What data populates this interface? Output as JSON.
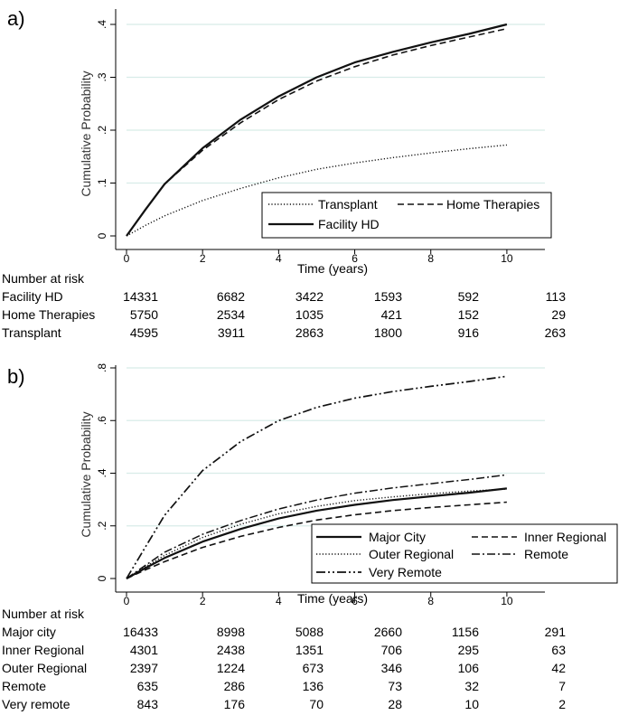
{
  "panels": [
    {
      "label": "a)"
    },
    {
      "label": "b)"
    }
  ],
  "chart_data": [
    {
      "type": "line",
      "title": "",
      "xlabel": "Time (years)",
      "ylabel": "Cumulative Probability",
      "xlim": [
        0,
        11
      ],
      "ylim": [
        0,
        0.4
      ],
      "xticks": [
        0,
        2,
        4,
        6,
        8,
        10
      ],
      "yticks": [
        0,
        0.1,
        0.2,
        0.3,
        0.4
      ],
      "ytick_labels": [
        "0",
        ".1",
        ".2",
        ".3",
        ".4"
      ],
      "xtick_labels": [
        "0",
        "2",
        "4",
        "6",
        "8",
        "10"
      ],
      "legend": [
        "Transplant",
        "Home Therapies",
        "Facility HD"
      ],
      "series": [
        {
          "name": "Transplant",
          "style": "dotted",
          "x": [
            0,
            0.5,
            1,
            2,
            3,
            4,
            5,
            6,
            7,
            8,
            9,
            10
          ],
          "y": [
            0,
            0.02,
            0.038,
            0.067,
            0.09,
            0.11,
            0.126,
            0.138,
            0.148,
            0.157,
            0.165,
            0.172
          ]
        },
        {
          "name": "Home Therapies",
          "style": "dashed",
          "x": [
            0,
            0.5,
            1,
            2,
            3,
            4,
            5,
            6,
            7,
            8,
            9,
            10
          ],
          "y": [
            0,
            0.05,
            0.098,
            0.162,
            0.214,
            0.258,
            0.293,
            0.32,
            0.342,
            0.36,
            0.376,
            0.392
          ]
        },
        {
          "name": "Facility HD",
          "style": "solid",
          "x": [
            0,
            0.5,
            1,
            2,
            3,
            4,
            5,
            6,
            7,
            8,
            9,
            10
          ],
          "y": [
            0,
            0.05,
            0.098,
            0.166,
            0.22,
            0.264,
            0.3,
            0.328,
            0.348,
            0.366,
            0.382,
            0.4
          ]
        }
      ],
      "risk_table": {
        "title": "Number at risk",
        "rows": [
          {
            "label": "Facility HD",
            "values": [
              "14331",
              "6682",
              "3422",
              "1593",
              "592",
              "113"
            ]
          },
          {
            "label": "Home Therapies",
            "values": [
              "5750",
              "2534",
              "1035",
              "421",
              "152",
              "29"
            ]
          },
          {
            "label": "Transplant",
            "values": [
              "4595",
              "3911",
              "2863",
              "1800",
              "916",
              "263"
            ]
          }
        ]
      }
    },
    {
      "type": "line",
      "title": "",
      "xlabel": "Time (years)",
      "ylabel": "Cumulative Probability",
      "xlim": [
        0,
        11
      ],
      "ylim": [
        0,
        0.8
      ],
      "xticks": [
        0,
        2,
        4,
        6,
        8,
        10
      ],
      "yticks": [
        0,
        0.2,
        0.4,
        0.6,
        0.8
      ],
      "ytick_labels": [
        "0",
        ".2",
        ".4",
        ".6",
        ".8"
      ],
      "xtick_labels": [
        "0",
        "2",
        "4",
        "6",
        "8",
        "10"
      ],
      "legend": [
        "Major City",
        "Inner Regional",
        "Outer Regional",
        "Remote",
        "Very Remote"
      ],
      "series": [
        {
          "name": "Major City",
          "style": "solid",
          "x": [
            0,
            0.5,
            1,
            2,
            3,
            4,
            5,
            6,
            7,
            8,
            9,
            10
          ],
          "y": [
            0,
            0.04,
            0.078,
            0.14,
            0.188,
            0.228,
            0.258,
            0.28,
            0.298,
            0.312,
            0.326,
            0.342
          ]
        },
        {
          "name": "Inner Regional",
          "style": "dashed",
          "x": [
            0,
            0.5,
            1,
            2,
            3,
            4,
            5,
            6,
            7,
            8,
            9,
            10
          ],
          "y": [
            0,
            0.033,
            0.064,
            0.118,
            0.16,
            0.194,
            0.222,
            0.242,
            0.258,
            0.27,
            0.28,
            0.29
          ]
        },
        {
          "name": "Outer Regional",
          "style": "dotted",
          "x": [
            0,
            0.5,
            1,
            2,
            3,
            4,
            5,
            6,
            7,
            8,
            9,
            10
          ],
          "y": [
            0,
            0.045,
            0.088,
            0.156,
            0.206,
            0.246,
            0.274,
            0.296,
            0.31,
            0.322,
            0.332,
            0.34
          ]
        },
        {
          "name": "Remote",
          "style": "dashdot",
          "x": [
            0,
            0.5,
            1,
            2,
            3,
            4,
            5,
            6,
            7,
            8,
            9,
            10
          ],
          "y": [
            0,
            0.05,
            0.1,
            0.168,
            0.22,
            0.264,
            0.298,
            0.324,
            0.344,
            0.36,
            0.376,
            0.394
          ]
        },
        {
          "name": "Very Remote",
          "style": "dashdotdot",
          "x": [
            0,
            0.5,
            1,
            2,
            3,
            4,
            5,
            6,
            7,
            8,
            9,
            10
          ],
          "y": [
            0,
            0.12,
            0.24,
            0.41,
            0.52,
            0.6,
            0.65,
            0.685,
            0.71,
            0.73,
            0.748,
            0.768
          ]
        }
      ],
      "risk_table": {
        "title": "Number at risk",
        "rows": [
          {
            "label": "Major city",
            "values": [
              "16433",
              "8998",
              "5088",
              "2660",
              "1156",
              "291"
            ]
          },
          {
            "label": "Inner Regional",
            "values": [
              "4301",
              "2438",
              "1351",
              "706",
              "295",
              "63"
            ]
          },
          {
            "label": "Outer Regional",
            "values": [
              "2397",
              "1224",
              "673",
              "346",
              "106",
              "42"
            ]
          },
          {
            "label": "Remote",
            "values": [
              "635",
              "286",
              "136",
              "73",
              "32",
              "7"
            ]
          },
          {
            "label": "Very remote",
            "values": [
              "843",
              "176",
              "70",
              "28",
              "10",
              "2"
            ]
          }
        ]
      }
    }
  ]
}
